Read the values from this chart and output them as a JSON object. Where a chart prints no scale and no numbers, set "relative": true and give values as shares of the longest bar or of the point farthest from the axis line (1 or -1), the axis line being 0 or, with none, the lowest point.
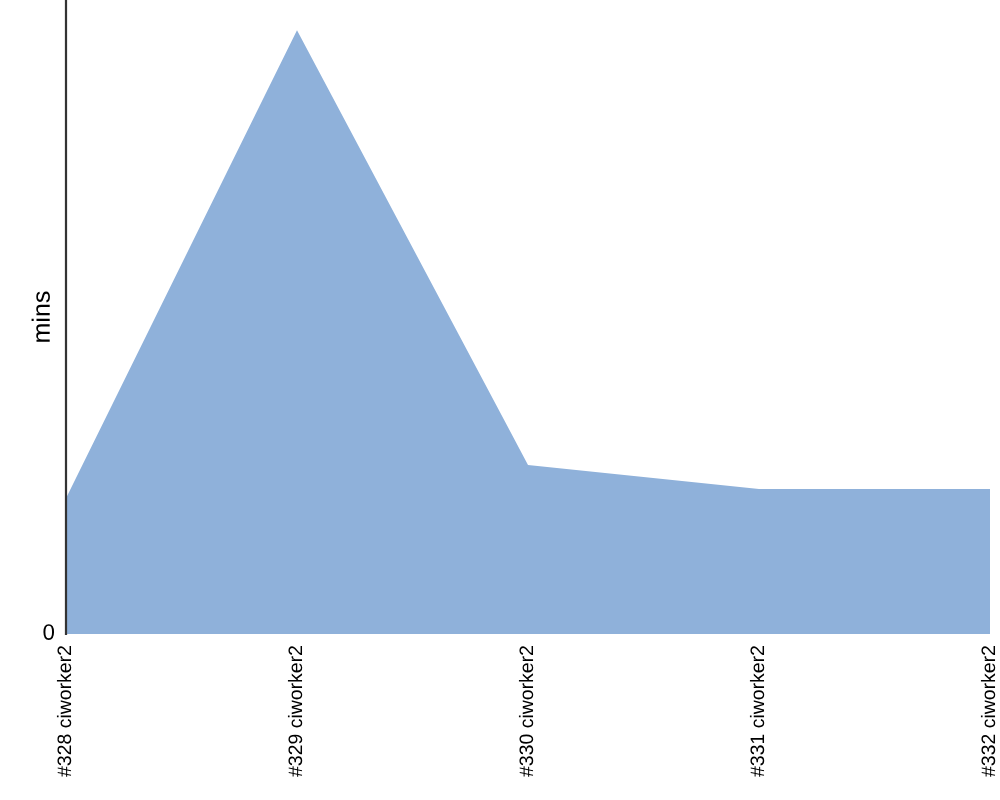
{
  "chart_data": {
    "type": "area",
    "ylabel": "mins",
    "relative": true,
    "categories": [
      "#328 ciworker2",
      "#329 ciworker2",
      "#330 ciworker2",
      "#331 ciworker2",
      "#332 ciworker2"
    ],
    "series": [
      {
        "color": "#8fb1da",
        "values": [
          0.225,
          1,
          0.28,
          0.24,
          0.24
        ]
      }
    ],
    "annotations": [
      "0"
    ]
  }
}
